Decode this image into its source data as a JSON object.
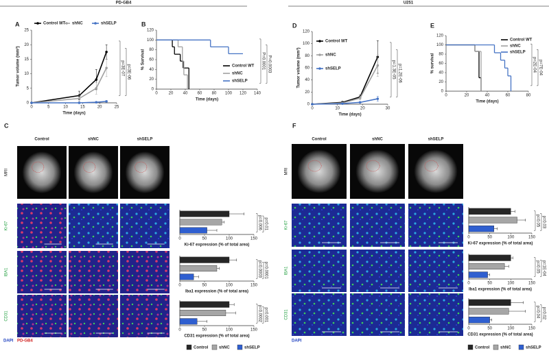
{
  "header": {
    "left": "PD-GB4",
    "right": "U251"
  },
  "panels": [
    "A",
    "B",
    "C",
    "D",
    "E",
    "F"
  ],
  "images_left": {
    "columns": [
      "Control",
      "shNC",
      "shSELP"
    ],
    "rows": [
      "MRI",
      "Ki-67",
      "IBA1",
      "CD31"
    ],
    "stain": [
      "DAPI",
      "PD-GB4"
    ]
  },
  "images_right": {
    "columns": [
      "Control",
      "shNC",
      "shSELP"
    ],
    "rows": [
      "MRI",
      "Ki-67",
      "IBA1",
      "CD31"
    ],
    "stain": [
      "DAPI"
    ]
  },
  "chart_data": [
    {
      "type": "line",
      "xlabel": "Time (days)",
      "ylabel": "Tumor volume (mm³)",
      "x": [
        0,
        14,
        19,
        22
      ],
      "xlim": [
        0,
        25
      ],
      "xticks": [
        0,
        5,
        10,
        15,
        20,
        25
      ],
      "ylim": [
        0,
        25
      ],
      "yticks": [
        0,
        5,
        10,
        15,
        20,
        25
      ],
      "grid": false,
      "legend": "top",
      "series": [
        {
          "name": "Control WT",
          "color": "#000000",
          "values": [
            0,
            2.5,
            8,
            17.5
          ],
          "errors": [
            0,
            1.5,
            3.5,
            2.5
          ]
        },
        {
          "name": "shNC",
          "color": "#a0a0a0",
          "values": [
            0,
            1.5,
            5,
            12
          ],
          "errors": [
            0,
            1,
            2,
            3
          ]
        },
        {
          "name": "shSELP",
          "color": "#4472c4",
          "values": [
            0,
            0,
            0.2,
            0.5
          ],
          "errors": [
            0,
            0.2,
            0.2,
            0.3
          ]
        }
      ],
      "annotations": [
        "p=3E-07",
        "p=3E-06"
      ]
    },
    {
      "type": "step",
      "xlabel": "Time (days)",
      "ylabel": "% Survival",
      "xlim": [
        0,
        140
      ],
      "xticks": [
        0,
        20,
        40,
        60,
        80,
        100,
        120,
        140
      ],
      "ylim": [
        0,
        120
      ],
      "yticks": [
        0,
        20,
        40,
        60,
        80,
        100,
        120
      ],
      "grid": false,
      "legend": "bottom-right",
      "series": [
        {
          "name": "Control WT",
          "color": "#000000",
          "x": [
            0,
            22,
            25,
            33,
            37,
            45
          ],
          "values": [
            100,
            86,
            71,
            57,
            43,
            0
          ]
        },
        {
          "name": "shNC",
          "color": "#a0a0a0",
          "x": [
            0,
            30,
            36,
            38,
            43
          ],
          "values": [
            100,
            86,
            57,
            29,
            0
          ]
        },
        {
          "name": "shSELP",
          "color": "#4472c4",
          "x": [
            0,
            75,
            100,
            120
          ],
          "values": [
            100,
            86,
            72,
            72
          ]
        }
      ],
      "annotations": [
        "P=0.0001",
        "P=0.0003"
      ]
    },
    {
      "type": "line",
      "xlabel": "Time (days)",
      "ylabel": "Tumor volume (mm³)",
      "x": [
        0,
        12,
        19,
        26
      ],
      "xlim": [
        0,
        30
      ],
      "xticks": [
        0,
        10,
        20,
        30
      ],
      "ylim": [
        0,
        120
      ],
      "yticks": [
        0,
        20,
        40,
        60,
        80,
        100,
        120
      ],
      "grid": false,
      "legend": "top-left",
      "series": [
        {
          "name": "Control  WT",
          "color": "#000000",
          "values": [
            0,
            3,
            12,
            78
          ],
          "errors": [
            0,
            2,
            3,
            27
          ]
        },
        {
          "name": "shNC",
          "color": "#a0a0a0",
          "values": [
            0,
            2,
            10,
            64
          ],
          "errors": [
            0,
            1,
            3,
            18
          ]
        },
        {
          "name": "shSELP",
          "color": "#4472c4",
          "values": [
            0,
            1,
            3,
            9
          ],
          "errors": [
            0,
            0.5,
            1,
            4
          ]
        }
      ],
      "annotations": [
        "p=1.3E-05",
        "p=1.2E-06"
      ]
    },
    {
      "type": "step",
      "xlabel": "Time (days)",
      "ylabel": "% survival",
      "xlim": [
        0,
        80
      ],
      "xticks": [
        0,
        20,
        40,
        60,
        80
      ],
      "ylim": [
        0,
        120
      ],
      "yticks": [
        0,
        20,
        40,
        60,
        80,
        100,
        120
      ],
      "grid": false,
      "legend": "top-right",
      "series": [
        {
          "name": "Control WT",
          "color": "#000000",
          "x": [
            0,
            28,
            32,
            34
          ],
          "values": [
            100,
            86,
            29,
            0
          ]
        },
        {
          "name": "shNC",
          "color": "#a0a0a0",
          "x": [
            0,
            28,
            34
          ],
          "values": [
            100,
            86,
            0
          ]
        },
        {
          "name": "shSELP",
          "color": "#4472c4",
          "x": [
            0,
            47,
            53,
            57,
            60,
            63
          ],
          "values": [
            100,
            83,
            67,
            50,
            33,
            0
          ]
        }
      ],
      "annotations": [
        "p=2E-04",
        "p=7E-04"
      ]
    },
    {
      "type": "bar",
      "xlabel": "Ki-67 expression (% of total area)",
      "categories": [
        "Control",
        "shNC",
        "shSELP"
      ],
      "colors": [
        "#262626",
        "#a6a6a6",
        "#2f5fd0"
      ],
      "values": [
        100,
        85,
        55
      ],
      "errors": [
        30,
        5,
        20
      ],
      "xlim": [
        0,
        150
      ],
      "xticks": [
        0,
        50,
        100,
        150
      ],
      "annotations": [
        "p=0.006",
        "p=0.01"
      ]
    },
    {
      "type": "bar",
      "xlabel": "Iba1 expression (% of total area)",
      "categories": [
        "Control",
        "shNC",
        "shSELP"
      ],
      "colors": [
        "#262626",
        "#a6a6a6",
        "#2f5fd0"
      ],
      "values": [
        100,
        75,
        28
      ],
      "errors": [
        15,
        5,
        10
      ],
      "xlim": [
        0,
        150
      ],
      "xticks": [
        0,
        50,
        100,
        150
      ],
      "annotations": [
        "p=0.0003",
        "p=0.0001"
      ]
    },
    {
      "type": "bar",
      "xlabel": "CD31 expression (% of total area)",
      "categories": [
        "Control",
        "shNC",
        "shSELP"
      ],
      "colors": [
        "#262626",
        "#a6a6a6",
        "#2f5fd0"
      ],
      "values": [
        100,
        93,
        35
      ],
      "errors": [
        10,
        20,
        20
      ],
      "xlim": [
        0,
        150
      ],
      "xticks": [
        0,
        50,
        100,
        150
      ],
      "annotations": [
        "p=0.0002",
        "p=0.001"
      ]
    },
    {
      "type": "bar",
      "xlabel": "Ki-67 expression (% of total area)",
      "categories": [
        "Control",
        "shNC",
        "shSELP"
      ],
      "colors": [
        "#262626",
        "#a6a6a6",
        "#2f5fd0"
      ],
      "values": [
        100,
        115,
        60
      ],
      "errors": [
        10,
        20,
        8
      ],
      "xlim": [
        0,
        150
      ],
      "xticks": [
        0,
        50,
        100,
        150
      ],
      "annotations": [
        "p=0.05",
        "p=0.03"
      ]
    },
    {
      "type": "bar",
      "xlabel": "Iba1 expression (% of total area)",
      "categories": [
        "Control",
        "shNC",
        "shSELP"
      ],
      "colors": [
        "#262626",
        "#a6a6a6",
        "#2f5fd0"
      ],
      "values": [
        100,
        85,
        45
      ],
      "errors": [
        5,
        10,
        5
      ],
      "xlim": [
        0,
        150
      ],
      "xticks": [
        0,
        50,
        100,
        150
      ],
      "annotations": [
        "p=0.05",
        "p=1E-04"
      ]
    },
    {
      "type": "bar",
      "xlabel": "CD31 expression (% of total area)",
      "categories": [
        "Control",
        "shNC",
        "shSELP"
      ],
      "colors": [
        "#262626",
        "#a6a6a6",
        "#2f5fd0"
      ],
      "values": [
        100,
        95,
        50
      ],
      "errors": [
        30,
        40,
        5
      ],
      "xlim": [
        0,
        150
      ],
      "xticks": [
        0,
        50,
        100,
        150
      ],
      "annotations": [
        "p=0.04",
        "p=0.02"
      ]
    }
  ]
}
